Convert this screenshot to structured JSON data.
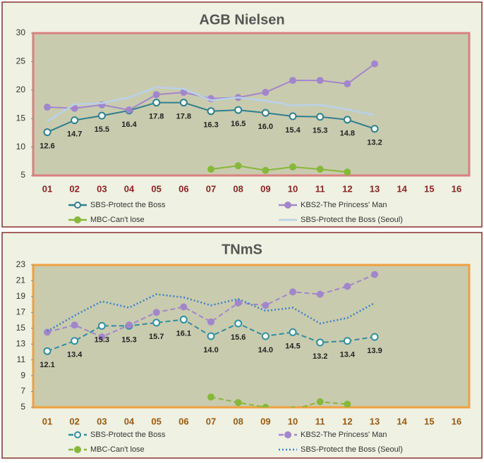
{
  "chart_data": [
    {
      "type": "line",
      "title": "AGB Nielsen",
      "categories": [
        "01",
        "02",
        "03",
        "04",
        "05",
        "06",
        "07",
        "08",
        "09",
        "10",
        "11",
        "12",
        "13",
        "14",
        "15",
        "16"
      ],
      "ylim": [
        5,
        30
      ],
      "yticks": [
        5,
        10,
        15,
        20,
        25,
        30
      ],
      "category_color": "#8b2323",
      "frame_color": "#d98080",
      "series": [
        {
          "name": "SBS-Protect the Boss",
          "color": "#2e7f8f",
          "line_style": "solid",
          "marker": "open-circle",
          "values": [
            12.6,
            14.7,
            15.5,
            16.4,
            17.8,
            17.8,
            16.3,
            16.5,
            16.0,
            15.4,
            15.3,
            14.8,
            13.2,
            null,
            null,
            null
          ],
          "value_labels": [
            "12.6",
            "14.7",
            "15.5",
            "16.4",
            "17.8",
            "17.8",
            "16.3",
            "16.5",
            "16.0",
            "15.4",
            "15.3",
            "14.8",
            "13.2",
            null,
            null,
            null
          ]
        },
        {
          "name": "KBS2-The Princess' Man",
          "color": "#a286cc",
          "line_style": "solid",
          "marker": "circle",
          "values": [
            17.0,
            16.8,
            17.4,
            16.5,
            19.2,
            19.6,
            18.5,
            18.7,
            19.6,
            21.7,
            21.7,
            21.1,
            24.6,
            null,
            null,
            null
          ]
        },
        {
          "name": "MBC-Can't lose",
          "color": "#86b83a",
          "line_style": "solid",
          "marker": "circle",
          "values": [
            null,
            null,
            null,
            null,
            null,
            null,
            6.1,
            6.7,
            5.9,
            6.5,
            6.1,
            5.6,
            null,
            null,
            null,
            null
          ]
        },
        {
          "name": "SBS-Protect the Boss (Seoul)",
          "color": "#b9d1ea",
          "line_style": "solid",
          "marker": "none",
          "values": [
            14.5,
            17.5,
            17.7,
            18.7,
            20.5,
            20.2,
            18.2,
            18.7,
            18.1,
            17.3,
            17.4,
            16.6,
            15.6,
            null,
            null,
            null
          ]
        }
      ]
    },
    {
      "type": "line",
      "title": "TNmS",
      "categories": [
        "01",
        "02",
        "03",
        "04",
        "05",
        "06",
        "07",
        "08",
        "09",
        "10",
        "11",
        "12",
        "13",
        "14",
        "15",
        "16"
      ],
      "ylim": [
        5,
        23
      ],
      "yticks": [
        5,
        7,
        9,
        11,
        13,
        15,
        17,
        19,
        21,
        23
      ],
      "category_color": "#9a5a10",
      "frame_color": "#f0a040",
      "series": [
        {
          "name": "SBS-Protect the Boss",
          "color": "#2e8fa0",
          "line_style": "dashed",
          "marker": "open-circle",
          "values": [
            12.1,
            13.4,
            15.3,
            15.3,
            15.7,
            16.1,
            14.0,
            15.6,
            14.0,
            14.5,
            13.2,
            13.4,
            13.9,
            null,
            null,
            null
          ],
          "value_labels": [
            "12.1",
            "13.4",
            "15.3",
            "15.3",
            "15.7",
            "16.1",
            "14.0",
            "15.6",
            "14.0",
            "14.5",
            "13.2",
            "13.4",
            "13.9",
            null,
            null,
            null
          ]
        },
        {
          "name": "KBS2-The Princess' Man",
          "color": "#a286cc",
          "line_style": "dashed",
          "marker": "circle",
          "values": [
            14.5,
            15.4,
            13.9,
            15.4,
            17.0,
            17.7,
            15.8,
            18.2,
            17.9,
            19.6,
            19.3,
            20.3,
            21.8,
            null,
            null,
            null
          ]
        },
        {
          "name": "MBC-Can't lose",
          "color": "#86b83a",
          "line_style": "dashed",
          "marker": "circle",
          "values": [
            null,
            null,
            null,
            null,
            null,
            null,
            6.3,
            5.6,
            5.0,
            4.7,
            5.7,
            5.4,
            null,
            null,
            null,
            null
          ]
        },
        {
          "name": "SBS-Protect the Boss (Seoul)",
          "color": "#3a7fc8",
          "line_style": "dotted",
          "marker": "none",
          "values": [
            14.6,
            16.6,
            18.4,
            17.6,
            19.3,
            18.9,
            17.9,
            18.7,
            17.2,
            17.6,
            15.6,
            16.3,
            18.2,
            null,
            null,
            null
          ]
        }
      ]
    }
  ]
}
